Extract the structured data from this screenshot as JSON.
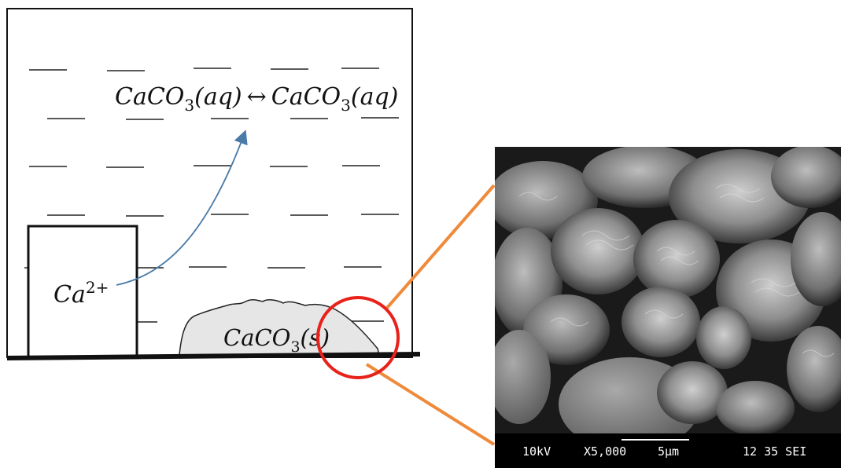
{
  "equation": {
    "left": "CaCO",
    "left_sub": "3",
    "left_phase": "(aq)",
    "arrow": "↔",
    "right": "CaCO",
    "right_sub": "3",
    "right_phase": "(aq)"
  },
  "ion": {
    "base": "Ca",
    "sup": "2+"
  },
  "solid": {
    "base": "CaCO",
    "sub": "3",
    "phase": "(s)"
  },
  "sem": {
    "voltage": "10kV",
    "magnification": "X5,000",
    "scale": "5µm",
    "code": "12 35 SEI"
  },
  "colors": {
    "arrow": "#4a7aa8",
    "circle": "#e8221b",
    "connector": "#ee8a3a",
    "solid_fill": "#e6e6e6"
  }
}
